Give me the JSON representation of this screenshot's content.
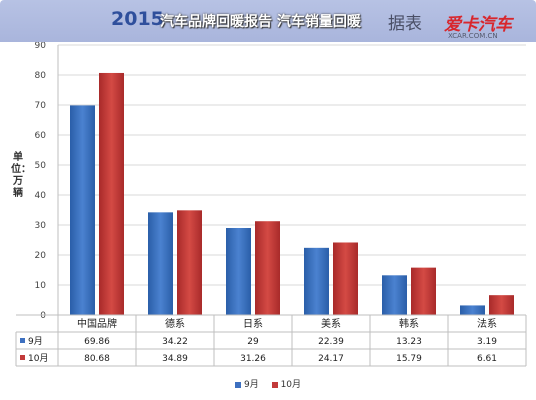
{
  "header": {
    "year": "2015",
    "overlay": "汽车品牌回暖报告 汽车销量回暖",
    "tail": "据表",
    "logo_text": "爱卡汽车",
    "logo_url": "XCAR.COM.CN"
  },
  "chart_data": {
    "type": "bar",
    "title": "",
    "ylabel": "单位：万辆",
    "xlabel": "",
    "ylim": [
      0,
      90
    ],
    "yticks": [
      0,
      10,
      20,
      30,
      40,
      50,
      60,
      70,
      80,
      90
    ],
    "grid": true,
    "legend": "bottom",
    "categories": [
      "中国品牌",
      "德系",
      "日系",
      "美系",
      "韩系",
      "法系"
    ],
    "series": [
      {
        "name": "9月",
        "color": "#3d70c0",
        "values": [
          69.86,
          34.22,
          29,
          22.39,
          13.23,
          3.19
        ]
      },
      {
        "name": "10月",
        "color": "#c23a3a",
        "values": [
          80.68,
          34.89,
          31.26,
          24.17,
          15.79,
          6.61
        ]
      }
    ]
  }
}
